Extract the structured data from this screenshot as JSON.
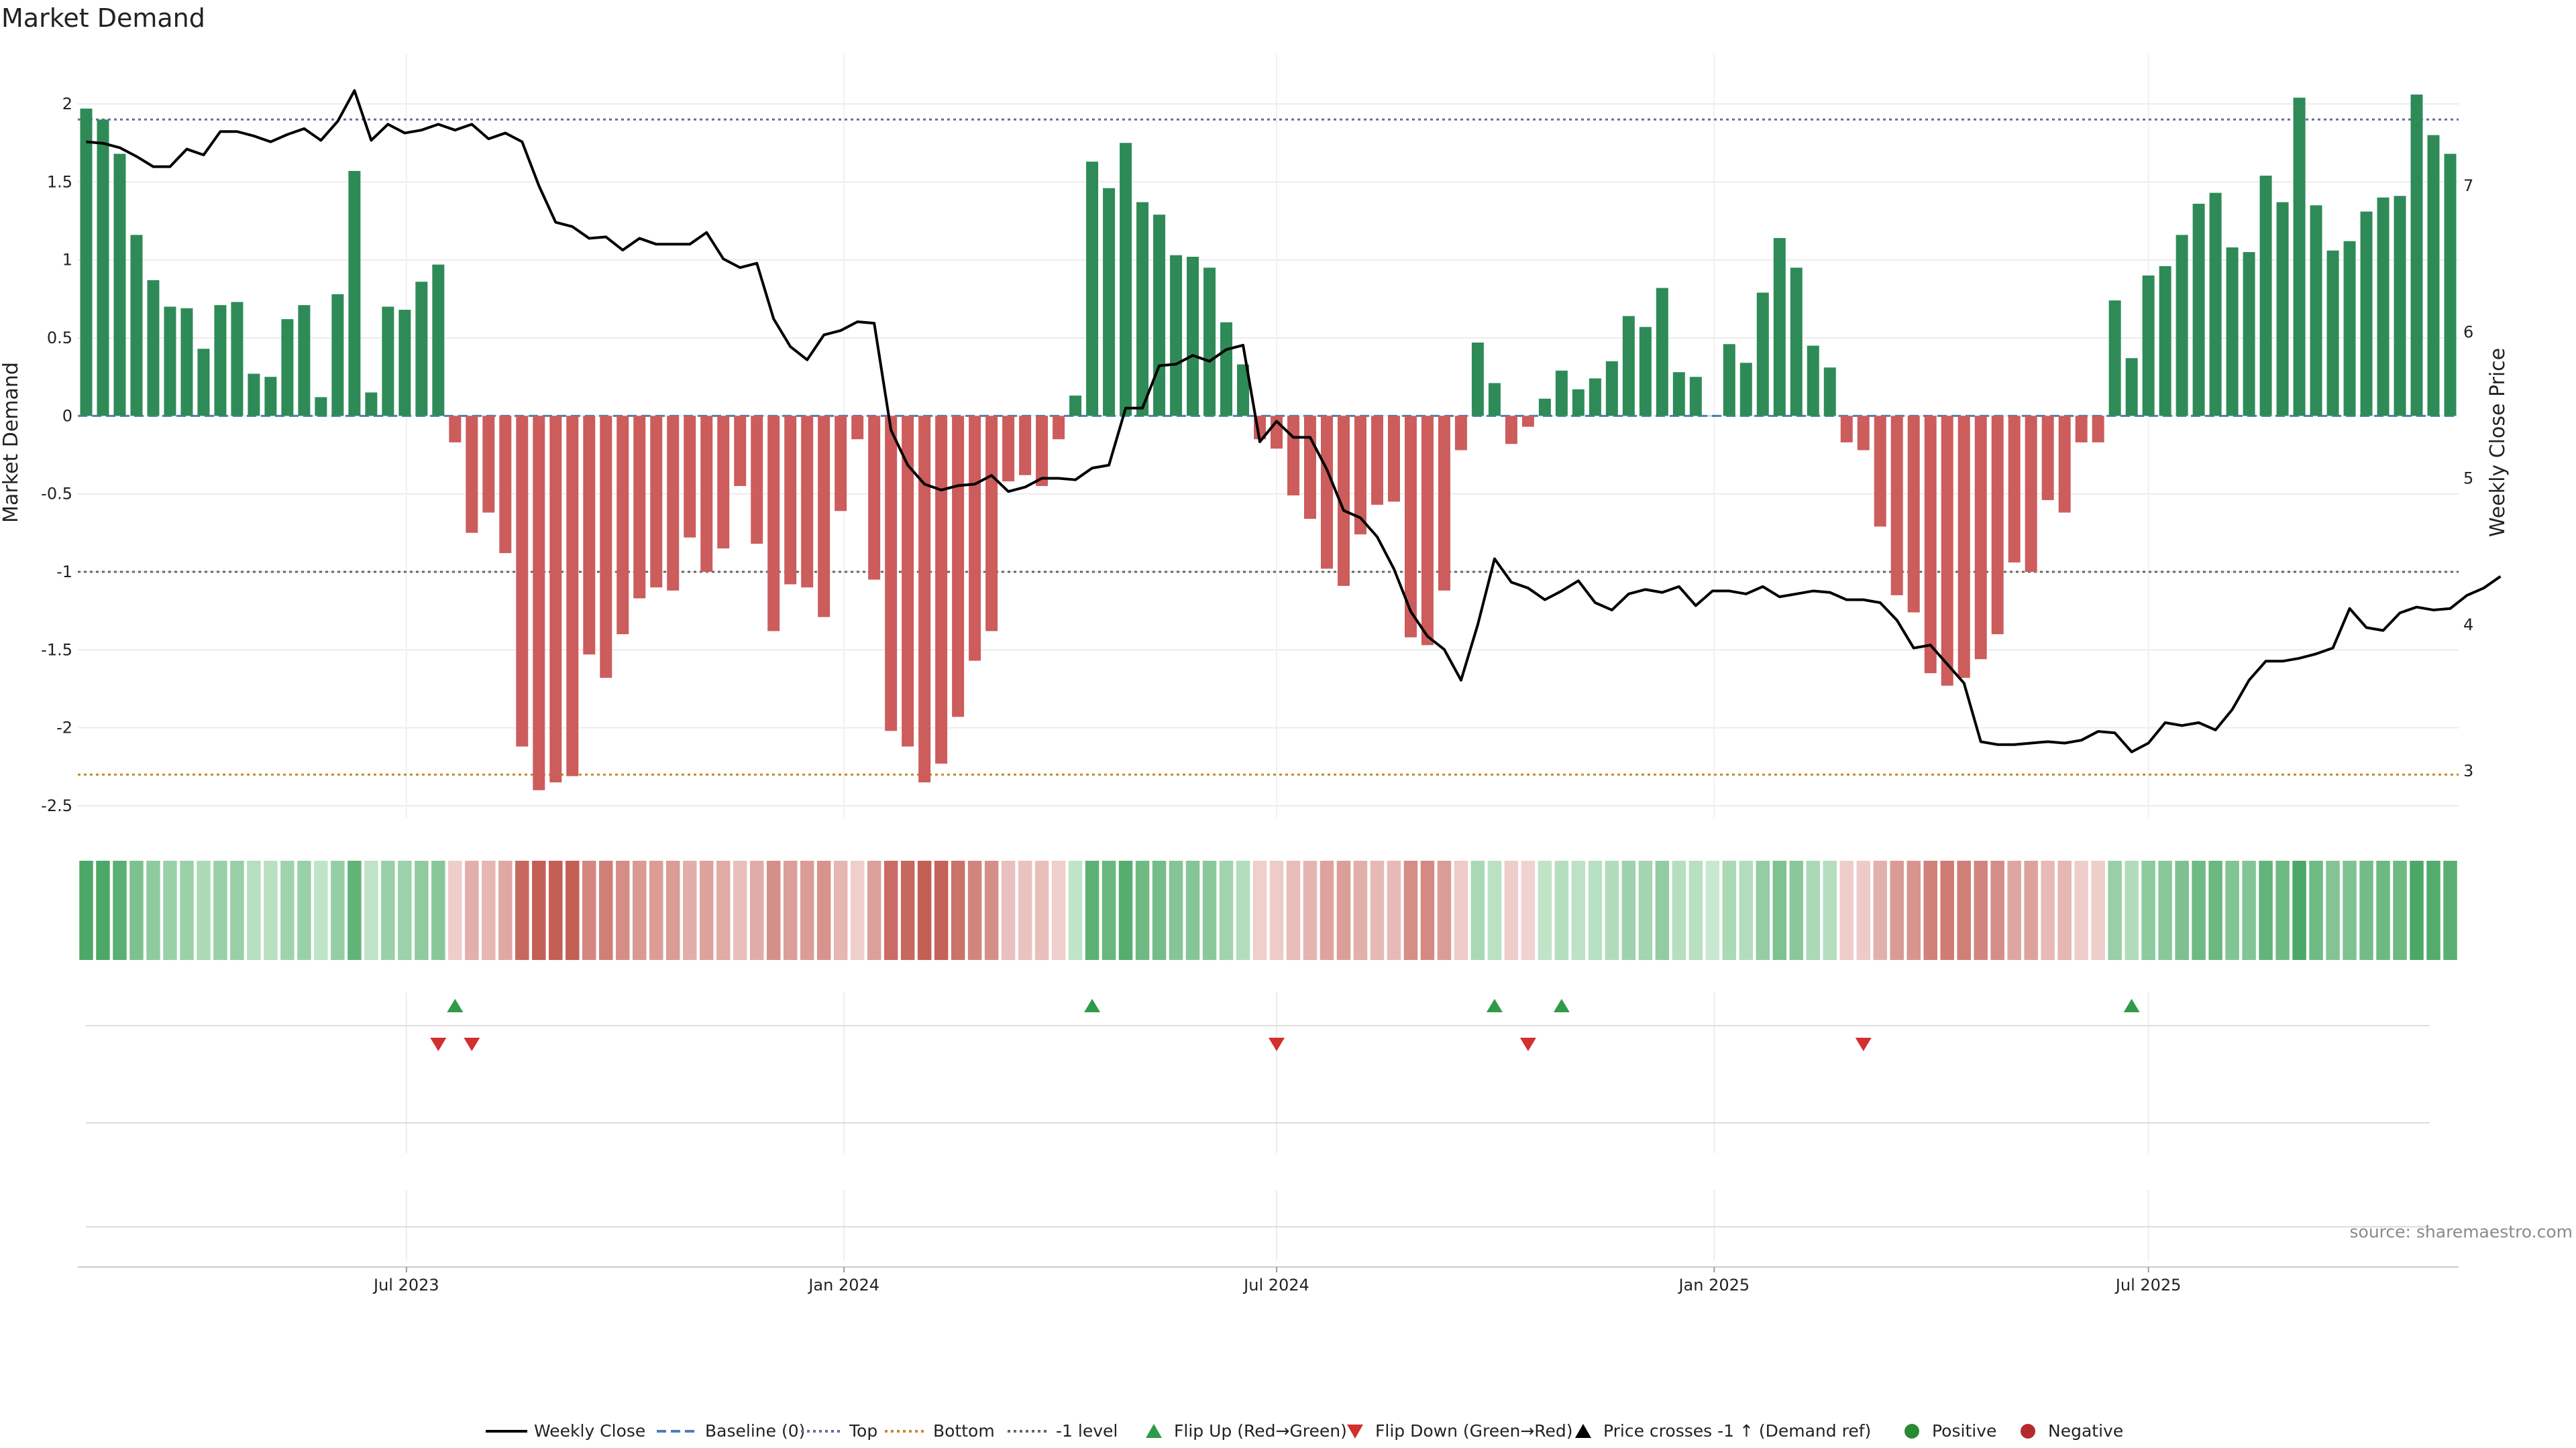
{
  "chart_data": {
    "type": "bar",
    "title": "Market Demand",
    "ylabel": "Market Demand",
    "ylabel_right": "Weekly Close Price",
    "ylim": [
      -2.5,
      2.2
    ],
    "ylim_right": [
      2.6,
      7.7
    ],
    "yticks": [
      "2",
      "1.5",
      "1",
      "0.5",
      "0",
      "-0.5",
      "-1",
      "-1.5",
      "-2",
      "-2.5"
    ],
    "yticks_right": [
      "7",
      "6",
      "5",
      "4",
      "3"
    ],
    "x_ticks": [
      {
        "label": "Jul 2023",
        "index": 19.6
      },
      {
        "label": "Jan 2024",
        "index": 45.7
      },
      {
        "label": "Jul 2024",
        "index": 71.5
      },
      {
        "label": "Jan 2025",
        "index": 97.6
      },
      {
        "label": "Jul 2025",
        "index": 123.5
      }
    ],
    "reference_lines": {
      "top": 1.9,
      "bottom": -2.3,
      "minus_one": -1.0,
      "baseline": 0
    },
    "demand": [
      1.97,
      1.9,
      1.68,
      1.16,
      0.87,
      0.7,
      0.69,
      0.43,
      0.71,
      0.73,
      0.27,
      0.25,
      0.62,
      0.71,
      0.12,
      0.78,
      1.57,
      0.15,
      0.7,
      0.68,
      0.86,
      0.97,
      -0.17,
      -0.75,
      -0.62,
      -0.88,
      -2.12,
      -2.4,
      -2.35,
      -2.31,
      -1.53,
      -1.68,
      -1.4,
      -1.17,
      -1.1,
      -1.12,
      -0.78,
      -1.0,
      -0.85,
      -0.45,
      -0.82,
      -1.38,
      -1.08,
      -1.1,
      -1.29,
      -0.61,
      -0.15,
      -1.05,
      -2.02,
      -2.12,
      -2.35,
      -2.23,
      -1.93,
      -1.57,
      -1.38,
      -0.42,
      -0.38,
      -0.45,
      -0.15,
      0.13,
      1.63,
      1.46,
      1.75,
      1.37,
      1.29,
      1.03,
      1.02,
      0.95,
      0.6,
      0.33,
      -0.15,
      -0.21,
      -0.51,
      -0.66,
      -0.98,
      -1.09,
      -0.76,
      -0.57,
      -0.55,
      -1.42,
      -1.47,
      -1.12,
      -0.22,
      0.47,
      0.21,
      -0.18,
      -0.07,
      0.11,
      0.29,
      0.17,
      0.24,
      0.35,
      0.64,
      0.57,
      0.82,
      0.28,
      0.25,
      0.0,
      0.46,
      0.34,
      0.79,
      1.14,
      0.95,
      0.45,
      0.31,
      -0.17,
      -0.22,
      -0.71,
      -1.15,
      -1.26,
      -1.65,
      -1.73,
      -1.68,
      -1.56,
      -1.4,
      -0.94,
      -1.0,
      -0.54,
      -0.62,
      -0.17,
      -0.17,
      0.74,
      0.37,
      0.9,
      0.96,
      1.16,
      1.36,
      1.43,
      1.08,
      1.05,
      1.54,
      1.37,
      2.04,
      1.35,
      1.06,
      1.12,
      1.31,
      1.4,
      1.41,
      2.06,
      1.8,
      1.68
    ],
    "price": [
      7.3,
      7.29,
      7.26,
      7.2,
      7.13,
      7.13,
      7.25,
      7.21,
      7.37,
      7.37,
      7.34,
      7.3,
      7.35,
      7.39,
      7.31,
      7.44,
      7.65,
      7.31,
      7.42,
      7.36,
      7.38,
      7.42,
      7.38,
      7.42,
      7.32,
      7.36,
      7.3,
      7.0,
      6.75,
      6.72,
      6.64,
      6.65,
      6.56,
      6.64,
      6.6,
      6.6,
      6.6,
      6.68,
      6.5,
      6.44,
      6.47,
      6.09,
      5.9,
      5.81,
      5.98,
      6.01,
      6.07,
      6.06,
      5.33,
      5.09,
      4.96,
      4.92,
      4.95,
      4.96,
      5.02,
      4.91,
      4.94,
      5.0,
      5.0,
      4.99,
      5.07,
      5.09,
      5.48,
      5.48,
      5.77,
      5.78,
      5.84,
      5.8,
      5.88,
      5.91,
      5.25,
      5.39,
      5.28,
      5.28,
      5.06,
      4.78,
      4.73,
      4.6,
      4.38,
      4.09,
      3.92,
      3.83,
      3.62,
      4.0,
      4.45,
      4.29,
      4.25,
      4.17,
      4.23,
      4.3,
      4.15,
      4.1,
      4.21,
      4.24,
      4.22,
      4.26,
      4.13,
      4.23,
      4.23,
      4.21,
      4.26,
      4.19,
      4.21,
      4.23,
      4.22,
      4.17,
      4.17,
      4.15,
      4.03,
      3.84,
      3.86,
      3.73,
      3.6,
      3.2,
      3.18,
      3.18,
      3.19,
      3.2,
      3.19,
      3.21,
      3.27,
      3.26,
      3.13,
      3.19,
      3.33,
      3.31,
      3.33,
      3.28,
      3.42,
      3.62,
      3.75,
      3.75,
      3.77,
      3.8,
      3.84,
      4.11,
      3.98,
      3.96,
      4.08,
      4.12,
      4.1,
      4.11,
      4.2,
      4.25,
      4.33
    ],
    "flip_up_markers": [
      22,
      60,
      84,
      88,
      122
    ],
    "flip_down_markers": [
      21,
      23,
      71,
      86,
      106
    ],
    "legend": [
      {
        "label": "Weekly Close",
        "symbol": "line",
        "color": "#000000"
      },
      {
        "label": "Baseline (0)",
        "symbol": "dash",
        "color": "#4a7fb8"
      },
      {
        "label": "Top",
        "symbol": "dot",
        "color": "#6a6a9e"
      },
      {
        "label": "Bottom",
        "symbol": "dot",
        "color": "#c8892a"
      },
      {
        "label": "-1 level",
        "symbol": "dot",
        "color": "#666666"
      },
      {
        "label": "Flip Up (Red→Green)",
        "symbol": "tri-up",
        "color": "#2e9a4a"
      },
      {
        "label": "Flip Down (Green→Red)",
        "symbol": "tri-down",
        "color": "#d22f2f"
      },
      {
        "label": "Price crosses -1 ↑ (Demand ref)",
        "symbol": "tri-up",
        "color": "#000000"
      },
      {
        "label": "Positive",
        "symbol": "circle",
        "color": "#2a8a33"
      },
      {
        "label": "Negative",
        "symbol": "circle",
        "color": "#b52b2b"
      }
    ],
    "colors": {
      "positive_bar": "#2e8b57",
      "negative_bar": "#cd5c5c",
      "strip_green_dark": [
        76,
        168,
        102
      ],
      "strip_green_light": [
        200,
        232,
        207
      ],
      "strip_red_dark": [
        195,
        95,
        85
      ],
      "strip_red_light": [
        242,
        214,
        212
      ]
    },
    "source_note": "source: sharemaestro.com"
  }
}
